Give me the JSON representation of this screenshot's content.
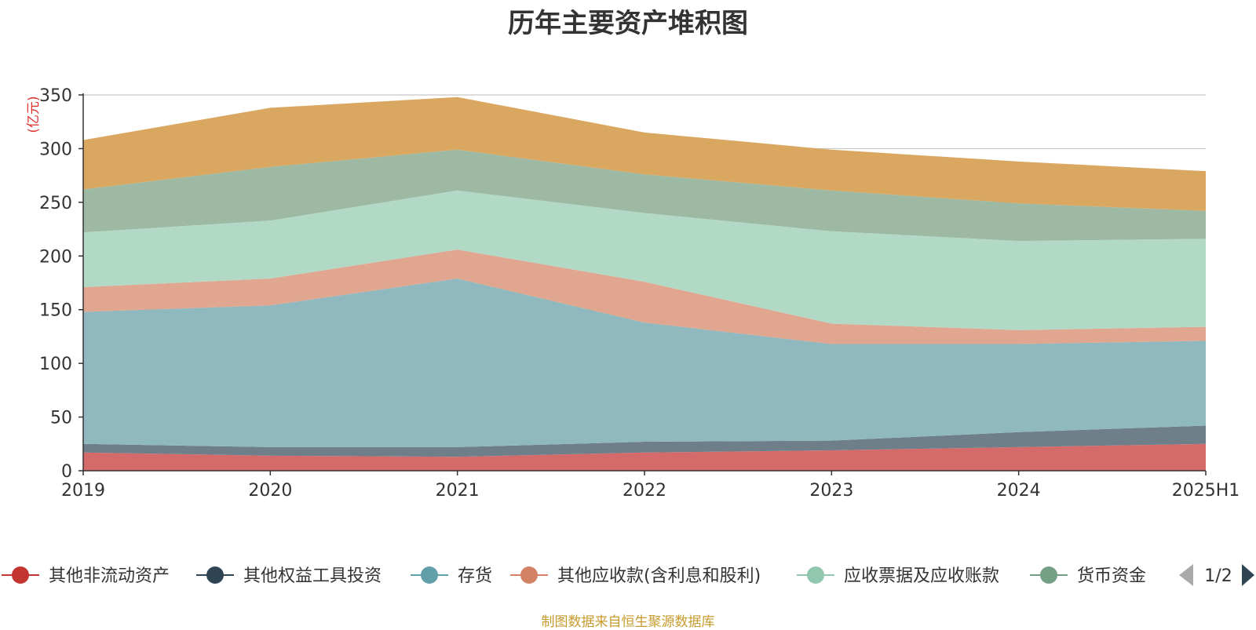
{
  "chart_data": {
    "type": "area",
    "stacked": true,
    "title": "历年主要资产堆积图",
    "unit": "(亿元)",
    "x": [
      "2019",
      "2020",
      "2021",
      "2022",
      "2023",
      "2024",
      "2025H1"
    ],
    "ylim": [
      0,
      350
    ],
    "yticks": [
      0,
      50,
      100,
      150,
      200,
      250,
      300,
      350
    ],
    "grid": true,
    "legend_position": "bottom",
    "series": [
      {
        "name": "其他非流动资产",
        "color": "#d46a6a",
        "marker_color": "#c23531",
        "values": [
          17,
          14,
          13,
          17,
          19,
          22,
          25
        ]
      },
      {
        "name": "其他权益工具投资",
        "color": "#6e7f8a",
        "marker_color": "#2f4554",
        "values": [
          8,
          8,
          9,
          10,
          9,
          14,
          17
        ]
      },
      {
        "name": "存货",
        "color": "#90b9bf",
        "marker_color": "#61a0a8",
        "values": [
          123,
          132,
          157,
          111,
          90,
          82,
          79
        ]
      },
      {
        "name": "其他应收款(含利息和股利)",
        "color": "#e0a690",
        "marker_color": "#d48265",
        "values": [
          23,
          25,
          27,
          38,
          19,
          13,
          13
        ]
      },
      {
        "name": "应收票据及应收账款",
        "color": "#b2d9c6",
        "marker_color": "#91c7ae",
        "values": [
          51,
          54,
          55,
          64,
          86,
          83,
          82
        ]
      },
      {
        "name": "货币资金",
        "color": "#9db8a3",
        "marker_color": "#749f83",
        "values": [
          40,
          50,
          38,
          36,
          38,
          35,
          26
        ]
      },
      {
        "name": "",
        "color": "#d9a760",
        "marker_color": "#ca8622",
        "values": [
          46,
          55,
          49,
          39,
          38,
          39,
          37
        ]
      }
    ]
  },
  "legend": {
    "page_indicator": "1/2"
  },
  "footer": {
    "source": "制图数据来自恒生聚源数据库"
  }
}
